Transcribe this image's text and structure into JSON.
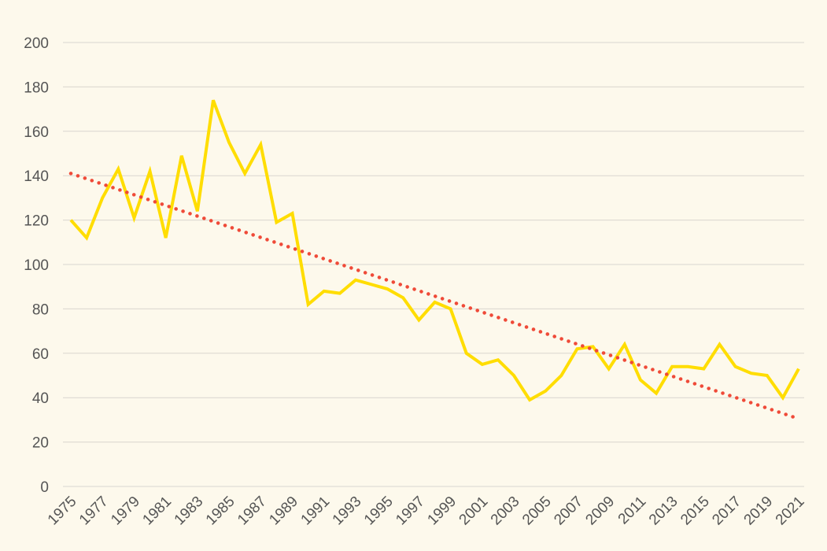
{
  "chart_data": {
    "type": "line",
    "title": "",
    "xlabel": "",
    "ylabel": "",
    "ylim": [
      0,
      200
    ],
    "yticks": [
      0,
      20,
      40,
      60,
      80,
      100,
      120,
      140,
      160,
      180,
      200
    ],
    "xtick_labels": [
      "1975",
      "1977",
      "1979",
      "1981",
      "1983",
      "1985",
      "1987",
      "1989",
      "1991",
      "1993",
      "1995",
      "1997",
      "1999",
      "2001",
      "2003",
      "2005",
      "2007",
      "2009",
      "2011",
      "2013",
      "2015",
      "2017",
      "2019",
      "2021"
    ],
    "grid": "horizontal",
    "legend": "none",
    "x": [
      1975,
      1976,
      1977,
      1978,
      1979,
      1980,
      1981,
      1982,
      1983,
      1984,
      1985,
      1986,
      1987,
      1988,
      1989,
      1990,
      1991,
      1992,
      1993,
      1994,
      1995,
      1996,
      1997,
      1998,
      1999,
      2000,
      2001,
      2002,
      2003,
      2004,
      2005,
      2006,
      2007,
      2008,
      2009,
      2010,
      2011,
      2012,
      2013,
      2014,
      2015,
      2016,
      2017,
      2018,
      2019,
      2020,
      2021
    ],
    "series": [
      {
        "values": [
          120,
          112,
          130,
          143,
          121,
          142,
          112,
          149,
          124,
          174,
          155,
          141,
          154,
          119,
          123,
          82,
          88,
          87,
          93,
          91,
          89,
          85,
          75,
          83,
          80,
          60,
          55,
          57,
          50,
          39,
          43,
          50,
          62,
          63,
          53,
          64,
          48,
          42,
          54,
          54,
          53,
          64,
          54,
          51,
          50,
          40,
          53
        ],
        "color": "#ffdd00",
        "style": "solid"
      },
      {
        "trend": "linear",
        "start": [
          1975,
          141
        ],
        "end": [
          2021,
          30.5
        ],
        "color": "#ef4a38",
        "style": "dotted"
      }
    ],
    "background": "#fdf9ec"
  }
}
